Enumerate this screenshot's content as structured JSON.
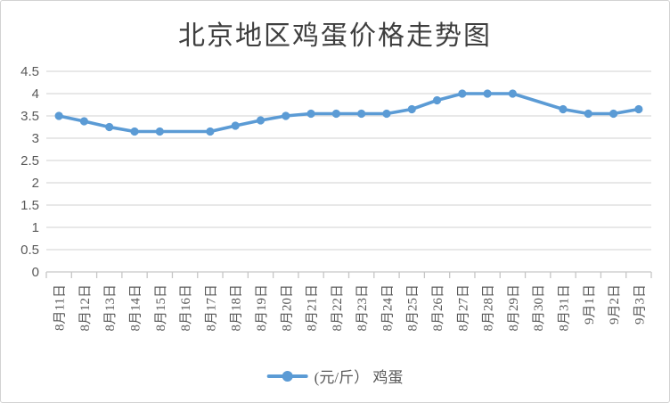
{
  "title": "北京地区鸡蛋价格走势图",
  "legend": {
    "label": "(元/斤） 鸡蛋"
  },
  "colors": {
    "series": "#5b9bd5",
    "grid": "#d9d9d9",
    "axis": "#c6c6c6",
    "tick_label": "#595959",
    "title": "#3f3f3f"
  },
  "chart_data": {
    "type": "line",
    "title": "北京地区鸡蛋价格走势图",
    "xlabel": "",
    "ylabel": "",
    "categories": [
      "8月11日",
      "8月12日",
      "8月13日",
      "8月14日",
      "8月15日",
      "8月16日",
      "8月17日",
      "8月18日",
      "8月19日",
      "8月20日",
      "8月21日",
      "8月22日",
      "8月23日",
      "8月24日",
      "8月25日",
      "8月26日",
      "8月27日",
      "8月28日",
      "8月29日",
      "8月30日",
      "8月31日",
      "9月1日",
      "9月2日",
      "9月3日"
    ],
    "series": [
      {
        "name": "(元/斤） 鸡蛋",
        "color": "#5b9bd5",
        "values": [
          3.5,
          3.38,
          3.25,
          3.15,
          3.15,
          null,
          3.15,
          3.28,
          3.4,
          3.5,
          3.55,
          3.55,
          3.55,
          3.55,
          3.65,
          3.85,
          4.0,
          4.0,
          4.0,
          null,
          3.65,
          3.55,
          3.55,
          3.65
        ]
      }
    ],
    "ylim": [
      0,
      4.5
    ],
    "ytick_step": 0.5,
    "yticks": [
      "0",
      "0.5",
      "1",
      "1.5",
      "2",
      "2.5",
      "3",
      "3.5",
      "4",
      "4.5"
    ],
    "grid": true,
    "legend_position": "bottom",
    "connect_nulls": true,
    "marker": "circle",
    "x_labels_rotated_90": true
  }
}
